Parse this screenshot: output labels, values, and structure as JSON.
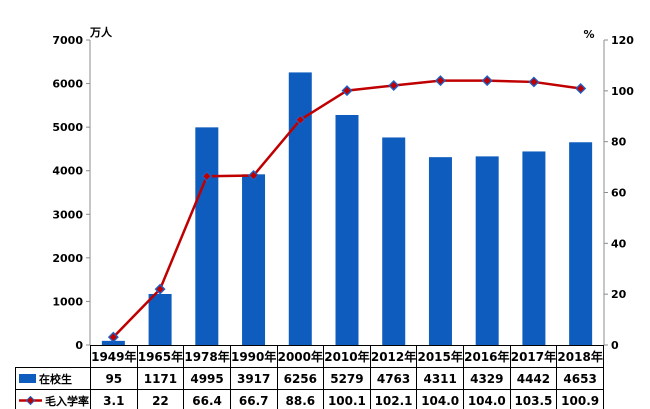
{
  "chart_data": {
    "type": "combo-bar-line",
    "categories": [
      "1949年",
      "1965年",
      "1978年",
      "1990年",
      "2000年",
      "2010年",
      "2012年",
      "2015年",
      "2016年",
      "2017年",
      "2018年"
    ],
    "series": [
      {
        "name": "在校生",
        "type": "bar",
        "axis": "left",
        "color": "#0D5CBE",
        "values": [
          95,
          1171,
          4995,
          3917,
          6256,
          5279,
          4763,
          4311,
          4329,
          4442,
          4653
        ],
        "display_values": [
          "95",
          "1171",
          "4995",
          "3917",
          "6256",
          "5279",
          "4763",
          "4311",
          "4329",
          "4442",
          "4653"
        ]
      },
      {
        "name": "毛入学率",
        "type": "line",
        "axis": "right",
        "color": "#C00000",
        "marker": "diamond",
        "marker_stroke": "#1F5FC4",
        "values": [
          3.1,
          22,
          66.4,
          66.7,
          88.6,
          100.1,
          102.1,
          104.0,
          104.0,
          103.5,
          100.9
        ],
        "display_values": [
          "3.1",
          "22",
          "66.4",
          "66.7",
          "88.6",
          "100.1",
          "102.1",
          "104.0",
          "104.0",
          "103.5",
          "100.9"
        ]
      }
    ],
    "left_axis": {
      "title": "万人",
      "min": 0,
      "max": 7000,
      "step": 1000
    },
    "right_axis": {
      "title": "%",
      "min": 0,
      "max": 120,
      "step": 20
    },
    "grid": false,
    "legend_position": "table-left",
    "plot_background": "#FFFFFF",
    "axis_line_color": "#8C8C8C"
  }
}
